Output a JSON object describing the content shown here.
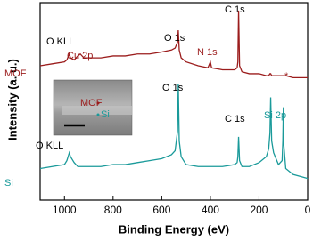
{
  "chart_data": {
    "type": "line",
    "x_label": "Binding Energy (eV)",
    "y_label": "Intensity (a. u.)",
    "x": [
      1100,
      1050,
      1000,
      990,
      980,
      975,
      960,
      945,
      935,
      920,
      900,
      850,
      800,
      750,
      700,
      650,
      600,
      560,
      545,
      535,
      532,
      528,
      520,
      500,
      450,
      410,
      400,
      395,
      350,
      300,
      290,
      287,
      284,
      280,
      270,
      240,
      200,
      170,
      160,
      155,
      152,
      148,
      140,
      120,
      105,
      102,
      100,
      98,
      90,
      60,
      30,
      0
    ],
    "series": [
      {
        "name": "MOF",
        "color": "#9b1c1c",
        "values": [
          68,
          69,
          70,
          71,
          74,
          72,
          71,
          73,
          74,
          72,
          72,
          72,
          73,
          73,
          74,
          74,
          75,
          76,
          77,
          80,
          86,
          76,
          72,
          70,
          68,
          67,
          70,
          67,
          66,
          66,
          67,
          70,
          96,
          68,
          65,
          64,
          64,
          63,
          63,
          64,
          64,
          63,
          63,
          63,
          63,
          63,
          63,
          63,
          63,
          62,
          62,
          62
        ]
      },
      {
        "name": "Si",
        "color": "#1a9a9a",
        "values": [
          16,
          17,
          18,
          20,
          24,
          22,
          19,
          17,
          17,
          17,
          17,
          17,
          18,
          18,
          19,
          20,
          21,
          23,
          25,
          35,
          59,
          30,
          22,
          18,
          17,
          17,
          17,
          17,
          17,
          18,
          19,
          22,
          32,
          20,
          17,
          17,
          19,
          22,
          26,
          34,
          52,
          30,
          24,
          18,
          20,
          30,
          47,
          28,
          16,
          13,
          12,
          11
        ]
      }
    ],
    "xlim": [
      1100,
      0
    ],
    "xticks": [
      1000,
      800,
      600,
      400,
      200,
      0
    ],
    "ylim": [
      0,
      100
    ],
    "annotations": [
      {
        "text": "O KLL",
        "color": "#000000"
      },
      {
        "text": "Cu 2p",
        "color": "#9b1c1c"
      },
      {
        "text": "O 1s",
        "color": "#000000"
      },
      {
        "text": "C 1s",
        "color": "#000000"
      },
      {
        "text": "N 1s",
        "color": "#9b1c1c"
      },
      {
        "text": "*",
        "color": "#9b1c1c"
      },
      {
        "text": "O 1s",
        "color": "#000000"
      },
      {
        "text": "C 1s",
        "color": "#000000"
      },
      {
        "text": "Si 2p",
        "color": "#1a9a9a"
      },
      {
        "text": "O KLL",
        "color": "#000000"
      }
    ],
    "inset_labels": [
      {
        "text": "MOF",
        "color": "#9b1c1c"
      },
      {
        "text": "Si",
        "color": "#1a9a9a"
      }
    ]
  }
}
